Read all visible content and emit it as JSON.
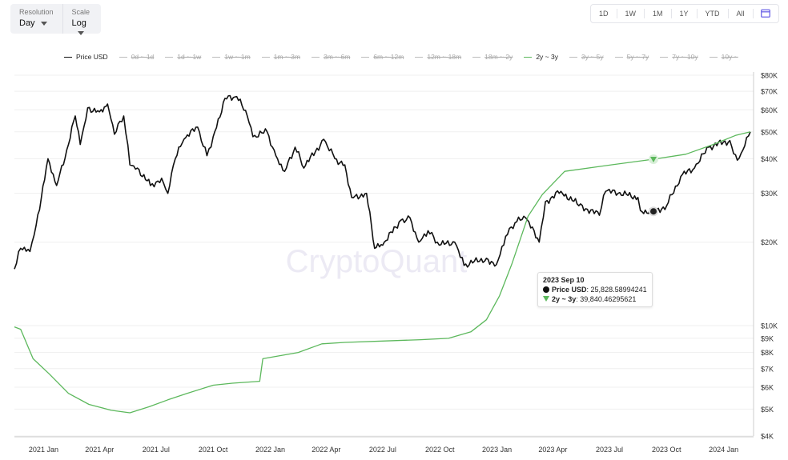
{
  "controls": {
    "resolution_label": "Resolution",
    "resolution_value": "Day",
    "scale_label": "Scale",
    "scale_value": "Log"
  },
  "range_buttons": [
    "1D",
    "1W",
    "1M",
    "1Y",
    "YTD",
    "All"
  ],
  "calendar_icon": "calendar-icon",
  "watermark": "CryptoQuant",
  "colors": {
    "price": "#111111",
    "band": "#5cb85c",
    "grid": "#eeeeee"
  },
  "legend": [
    {
      "label": "Price USD",
      "active": true,
      "color": "#111111"
    },
    {
      "label": "0d ~ 1d",
      "active": false
    },
    {
      "label": "1d ~ 1w",
      "active": false
    },
    {
      "label": "1w ~ 1m",
      "active": false
    },
    {
      "label": "1m ~ 3m",
      "active": false
    },
    {
      "label": "3m ~ 6m",
      "active": false
    },
    {
      "label": "6m ~ 12m",
      "active": false
    },
    {
      "label": "12m ~ 18m",
      "active": false
    },
    {
      "label": "18m ~ 2y",
      "active": false
    },
    {
      "label": "2y ~ 3y",
      "active": true,
      "color": "#5cb85c"
    },
    {
      "label": "3y ~ 5y",
      "active": false
    },
    {
      "label": "5y ~ 7y",
      "active": false
    },
    {
      "label": "7y ~ 10y",
      "active": false
    },
    {
      "label": "10y ~",
      "active": false
    }
  ],
  "tooltip": {
    "date": "2023 Sep 10",
    "price_label": "Price USD",
    "price_value": "25,828.58994241",
    "band_label": "2y ~ 3y",
    "band_value": "39,840.46295621"
  },
  "chart_data": {
    "type": "line",
    "yscale": "log",
    "ylim": [
      4000,
      80000
    ],
    "xlim": [
      "2020-11-15",
      "2024-02-13"
    ],
    "x_ticks": [
      [
        "2021-01-01",
        "2021 Jan"
      ],
      [
        "2021-04-01",
        "2021 Apr"
      ],
      [
        "2021-07-01",
        "2021 Jul"
      ],
      [
        "2021-10-01",
        "2021 Oct"
      ],
      [
        "2022-01-01",
        "2022 Jan"
      ],
      [
        "2022-04-01",
        "2022 Apr"
      ],
      [
        "2022-07-01",
        "2022 Jul"
      ],
      [
        "2022-10-01",
        "2022 Oct"
      ],
      [
        "2023-01-01",
        "2023 Jan"
      ],
      [
        "2023-04-01",
        "2023 Apr"
      ],
      [
        "2023-07-01",
        "2023 Jul"
      ],
      [
        "2023-10-01",
        "2023 Oct"
      ],
      [
        "2024-01-01",
        "2024 Jan"
      ]
    ],
    "y_ticks": [
      [
        80000,
        "$80K"
      ],
      [
        70000,
        "$70K"
      ],
      [
        60000,
        "$60K"
      ],
      [
        50000,
        "$50K"
      ],
      [
        40000,
        "$40K"
      ],
      [
        30000,
        "$30K"
      ],
      [
        20000,
        "$20K"
      ],
      [
        10000,
        "$10K"
      ],
      [
        9000,
        "$9K"
      ],
      [
        8000,
        "$8K"
      ],
      [
        7000,
        "$7K"
      ],
      [
        6000,
        "$6K"
      ],
      [
        5000,
        "$5K"
      ],
      [
        4000,
        "$4K"
      ]
    ],
    "series": [
      {
        "name": "Price USD",
        "points": [
          [
            "2020-11-15",
            16000
          ],
          [
            "2020-11-25",
            19000
          ],
          [
            "2020-12-10",
            18500
          ],
          [
            "2020-12-20",
            23000
          ],
          [
            "2021-01-08",
            40000
          ],
          [
            "2021-01-22",
            32000
          ],
          [
            "2021-02-10",
            45000
          ],
          [
            "2021-02-21",
            57000
          ],
          [
            "2021-03-01",
            45000
          ],
          [
            "2021-03-13",
            61000
          ],
          [
            "2021-04-01",
            59000
          ],
          [
            "2021-04-14",
            63000
          ],
          [
            "2021-04-25",
            49000
          ],
          [
            "2021-05-10",
            57000
          ],
          [
            "2021-05-20",
            38000
          ],
          [
            "2021-06-01",
            37000
          ],
          [
            "2021-06-22",
            32000
          ],
          [
            "2021-07-10",
            34000
          ],
          [
            "2021-07-20",
            30000
          ],
          [
            "2021-08-01",
            40000
          ],
          [
            "2021-08-15",
            47000
          ],
          [
            "2021-09-06",
            52000
          ],
          [
            "2021-09-21",
            41000
          ],
          [
            "2021-10-01",
            48000
          ],
          [
            "2021-10-20",
            66000
          ],
          [
            "2021-11-08",
            67000
          ],
          [
            "2021-11-25",
            57000
          ],
          [
            "2021-12-04",
            48000
          ],
          [
            "2021-12-27",
            50000
          ],
          [
            "2022-01-10",
            41000
          ],
          [
            "2022-01-24",
            36000
          ],
          [
            "2022-02-10",
            44000
          ],
          [
            "2022-02-24",
            37000
          ],
          [
            "2022-03-28",
            47000
          ],
          [
            "2022-04-15",
            40000
          ],
          [
            "2022-05-01",
            38000
          ],
          [
            "2022-05-12",
            29000
          ],
          [
            "2022-06-05",
            30000
          ],
          [
            "2022-06-18",
            19000
          ],
          [
            "2022-07-01",
            19500
          ],
          [
            "2022-07-30",
            24000
          ],
          [
            "2022-08-14",
            24500
          ],
          [
            "2022-08-28",
            20000
          ],
          [
            "2022-09-12",
            22000
          ],
          [
            "2022-09-30",
            19500
          ],
          [
            "2022-10-25",
            20000
          ],
          [
            "2022-11-09",
            16500
          ],
          [
            "2022-12-15",
            17500
          ],
          [
            "2022-12-31",
            16600
          ],
          [
            "2023-01-15",
            21000
          ],
          [
            "2023-01-30",
            23500
          ],
          [
            "2023-02-16",
            24500
          ],
          [
            "2023-03-10",
            20000
          ],
          [
            "2023-03-20",
            28000
          ],
          [
            "2023-04-14",
            30500
          ],
          [
            "2023-05-10",
            27500
          ],
          [
            "2023-06-15",
            25000
          ],
          [
            "2023-06-25",
            30500
          ],
          [
            "2023-07-15",
            30000
          ],
          [
            "2023-08-16",
            29000
          ],
          [
            "2023-08-20",
            26000
          ],
          [
            "2023-09-10",
            25829
          ],
          [
            "2023-10-01",
            27000
          ],
          [
            "2023-10-24",
            34500
          ],
          [
            "2023-11-15",
            37000
          ],
          [
            "2023-12-08",
            44000
          ],
          [
            "2024-01-11",
            46500
          ],
          [
            "2024-01-23",
            39500
          ],
          [
            "2024-02-01",
            43000
          ],
          [
            "2024-02-13",
            50000
          ]
        ]
      },
      {
        "name": "2y ~ 3y",
        "points": [
          [
            "2020-11-15",
            9900
          ],
          [
            "2020-11-25",
            9700
          ],
          [
            "2020-12-15",
            7600
          ],
          [
            "2021-01-10",
            6700
          ],
          [
            "2021-02-10",
            5700
          ],
          [
            "2021-03-15",
            5200
          ],
          [
            "2021-04-20",
            4950
          ],
          [
            "2021-05-20",
            4850
          ],
          [
            "2021-06-20",
            5100
          ],
          [
            "2021-07-20",
            5400
          ],
          [
            "2021-08-20",
            5700
          ],
          [
            "2021-10-01",
            6100
          ],
          [
            "2021-11-01",
            6200
          ],
          [
            "2021-12-15",
            6300
          ],
          [
            "2021-12-20",
            7600
          ],
          [
            "2022-02-15",
            8000
          ],
          [
            "2022-03-25",
            8600
          ],
          [
            "2022-05-01",
            8700
          ],
          [
            "2022-07-01",
            8800
          ],
          [
            "2022-09-01",
            8900
          ],
          [
            "2022-10-15",
            9000
          ],
          [
            "2022-11-20",
            9500
          ],
          [
            "2022-12-15",
            10500
          ],
          [
            "2023-01-05",
            12800
          ],
          [
            "2023-01-25",
            16700
          ],
          [
            "2023-02-20",
            24800
          ],
          [
            "2023-03-15",
            29700
          ],
          [
            "2023-04-20",
            36000
          ],
          [
            "2023-06-15",
            37500
          ],
          [
            "2023-09-10",
            39840
          ],
          [
            "2023-11-01",
            41500
          ],
          [
            "2023-12-15",
            45000
          ],
          [
            "2024-01-20",
            48500
          ],
          [
            "2024-02-13",
            50000
          ]
        ]
      }
    ],
    "highlight": {
      "date": "2023-09-10"
    }
  }
}
